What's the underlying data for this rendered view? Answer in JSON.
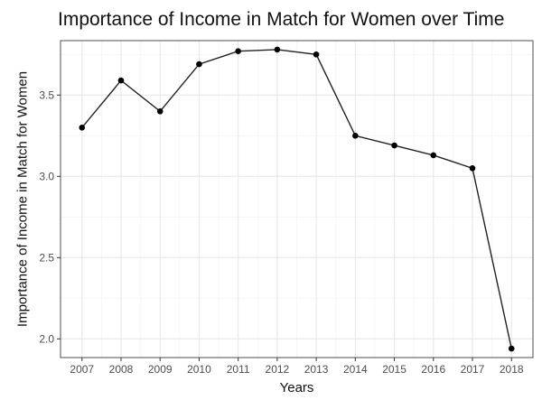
{
  "chart_data": {
    "type": "line",
    "title": "Importance of Income in Match for Women over Time",
    "xlabel": "Years",
    "ylabel": "Importance of Income in Match for Women",
    "x": [
      2007,
      2008,
      2009,
      2010,
      2011,
      2012,
      2013,
      2014,
      2015,
      2016,
      2017,
      2018
    ],
    "series": [
      {
        "values": [
          3.3,
          3.59,
          3.4,
          3.69,
          3.77,
          3.78,
          3.75,
          3.25,
          3.19,
          3.13,
          3.05,
          1.94
        ]
      }
    ],
    "yticks": [
      2.0,
      2.5,
      3.0,
      3.5
    ],
    "ytick_labels": [
      "2.0",
      "2.5",
      "3.0",
      "3.5"
    ],
    "xtick_labels": [
      "2007",
      "2008",
      "2009",
      "2010",
      "2011",
      "2012",
      "2013",
      "2014",
      "2015",
      "2016",
      "2017",
      "2018"
    ],
    "ylim": [
      1.885,
      3.835
    ],
    "xlim": [
      2006.45,
      2018.55
    ],
    "grid": true,
    "legend": "none",
    "colors": {
      "line": "#222222",
      "point": "#000000",
      "grid_major": "#e6e6e6",
      "grid_minor": "#f2f2f2",
      "panel_border": "#4d4d4d"
    }
  }
}
